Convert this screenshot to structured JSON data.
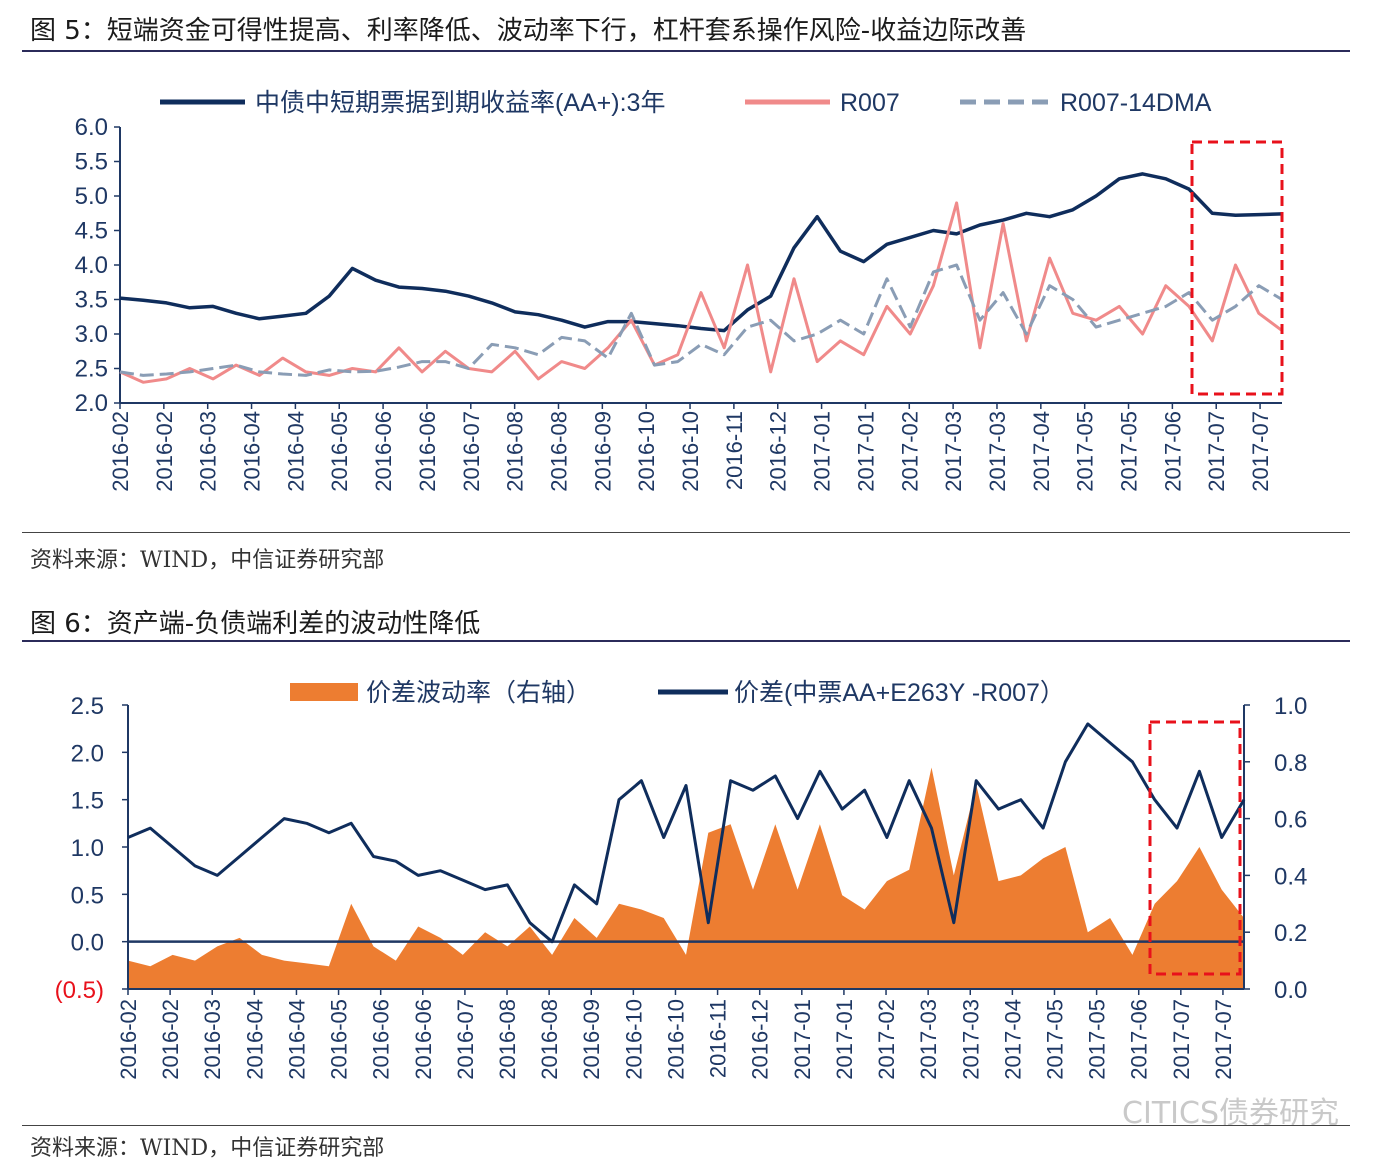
{
  "figure5": {
    "title": "图 5：短端资金可得性提高、利率降低、波动率下行，杠杆套系操作风险-收益边际改善",
    "source": "资料来源：WIND，中信证券研究部"
  },
  "figure6": {
    "title": "图 6：资产端-负债端利差的波动性降低",
    "source": "资料来源：WIND，中信证券研究部"
  },
  "watermark": "CITICS债券研究",
  "chart_data": [
    {
      "type": "line",
      "x_tick_labels": [
        "2016-02",
        "2016-02",
        "2016-03",
        "2016-04",
        "2016-04",
        "2016-05",
        "2016-06",
        "2016-06",
        "2016-07",
        "2016-08",
        "2016-08",
        "2016-09",
        "2016-10",
        "2016-10",
        "2016-11",
        "2016-12",
        "2017-01",
        "2017-01",
        "2017-02",
        "2017-03",
        "2017-03",
        "2017-04",
        "2017-05",
        "2017-05",
        "2017-06",
        "2017-07",
        "2017-07"
      ],
      "y_ticks": [
        "2.0",
        "2.5",
        "3.0",
        "3.5",
        "4.0",
        "4.5",
        "5.0",
        "5.5",
        "6.0"
      ],
      "ylim": [
        2.0,
        6.0
      ],
      "legend_position": "top",
      "series": [
        {
          "name": "中债中短期票据到期收益率(AA+):3年",
          "color": "#0f2d5c",
          "style": "solid",
          "values": [
            3.52,
            3.49,
            3.45,
            3.38,
            3.4,
            3.3,
            3.22,
            3.26,
            3.3,
            3.55,
            3.95,
            3.78,
            3.68,
            3.66,
            3.62,
            3.55,
            3.45,
            3.32,
            3.28,
            3.2,
            3.1,
            3.18,
            3.18,
            3.15,
            3.12,
            3.08,
            3.05,
            3.35,
            3.55,
            4.25,
            4.7,
            4.2,
            4.05,
            4.3,
            4.4,
            4.5,
            4.45,
            4.58,
            4.65,
            4.75,
            4.7,
            4.8,
            5.0,
            5.25,
            5.32,
            5.25,
            5.1,
            4.75,
            4.72,
            4.73,
            4.74
          ]
        },
        {
          "name": "R007",
          "color": "#f08a8a",
          "style": "solid",
          "values": [
            2.45,
            2.3,
            2.35,
            2.5,
            2.35,
            2.55,
            2.4,
            2.65,
            2.45,
            2.4,
            2.5,
            2.45,
            2.8,
            2.45,
            2.75,
            2.5,
            2.45,
            2.75,
            2.35,
            2.6,
            2.5,
            2.8,
            3.2,
            2.55,
            2.7,
            3.6,
            2.8,
            4.0,
            2.45,
            3.8,
            2.6,
            2.9,
            2.7,
            3.4,
            3.0,
            3.7,
            4.9,
            2.8,
            4.6,
            2.9,
            4.1,
            3.3,
            3.2,
            3.4,
            3.0,
            3.7,
            3.4,
            2.9,
            4.0,
            3.3,
            3.05
          ]
        },
        {
          "name": "R007-14DMA",
          "color": "#8a9db5",
          "style": "dashed",
          "values": [
            2.45,
            2.4,
            2.42,
            2.45,
            2.5,
            2.55,
            2.45,
            2.42,
            2.4,
            2.48,
            2.45,
            2.46,
            2.52,
            2.6,
            2.6,
            2.5,
            2.85,
            2.8,
            2.7,
            2.95,
            2.9,
            2.65,
            3.3,
            2.55,
            2.6,
            2.85,
            2.7,
            3.1,
            3.2,
            2.9,
            3.0,
            3.2,
            3.0,
            3.8,
            3.1,
            3.9,
            4.0,
            3.2,
            3.6,
            3.0,
            3.7,
            3.5,
            3.1,
            3.2,
            3.3,
            3.4,
            3.6,
            3.2,
            3.4,
            3.7,
            3.5
          ]
        }
      ]
    },
    {
      "type": "line",
      "x_tick_labels": [
        "2016-02",
        "2016-02",
        "2016-03",
        "2016-04",
        "2016-04",
        "2016-05",
        "2016-06",
        "2016-06",
        "2016-07",
        "2016-08",
        "2016-08",
        "2016-09",
        "2016-10",
        "2016-10",
        "2016-11",
        "2016-12",
        "2017-01",
        "2017-01",
        "2017-02",
        "2017-03",
        "2017-03",
        "2017-04",
        "2017-05",
        "2017-05",
        "2017-06",
        "2017-07",
        "2017-07"
      ],
      "y_left_ticks": [
        "(0.5)",
        "0.0",
        "0.5",
        "1.0",
        "1.5",
        "2.0",
        "2.5"
      ],
      "ylim_left": [
        -0.5,
        2.5
      ],
      "y_right_ticks": [
        "0.0",
        "0.2",
        "0.4",
        "0.6",
        "0.8",
        "1.0"
      ],
      "ylim_right": [
        0.0,
        1.0
      ],
      "legend_position": "top",
      "series": [
        {
          "name": "价差波动率（右轴）",
          "type": "area",
          "axis": "right",
          "color": "#ed7d31",
          "values": [
            0.1,
            0.08,
            0.12,
            0.1,
            0.15,
            0.18,
            0.12,
            0.1,
            0.09,
            0.08,
            0.3,
            0.15,
            0.1,
            0.22,
            0.18,
            0.12,
            0.2,
            0.15,
            0.22,
            0.12,
            0.25,
            0.18,
            0.3,
            0.28,
            0.25,
            0.12,
            0.55,
            0.58,
            0.35,
            0.58,
            0.35,
            0.58,
            0.33,
            0.28,
            0.38,
            0.42,
            0.78,
            0.4,
            0.72,
            0.38,
            0.4,
            0.46,
            0.5,
            0.2,
            0.25,
            0.12,
            0.3,
            0.38,
            0.5,
            0.35,
            0.25
          ]
        },
        {
          "name": "价差(中票AA+E263Y -R007）",
          "type": "line",
          "axis": "left",
          "color": "#0f2d5c",
          "values": [
            1.1,
            1.2,
            1.0,
            0.8,
            0.7,
            0.9,
            1.1,
            1.3,
            1.25,
            1.15,
            1.25,
            0.9,
            0.85,
            0.7,
            0.75,
            0.65,
            0.55,
            0.6,
            0.2,
            0.0,
            0.6,
            0.4,
            1.5,
            1.7,
            1.1,
            1.65,
            0.2,
            1.7,
            1.6,
            1.75,
            1.3,
            1.8,
            1.4,
            1.6,
            1.1,
            1.7,
            1.2,
            0.2,
            1.7,
            1.4,
            1.5,
            1.2,
            1.9,
            2.3,
            2.1,
            1.9,
            1.5,
            1.2,
            1.8,
            1.1,
            1.5
          ]
        }
      ]
    }
  ]
}
